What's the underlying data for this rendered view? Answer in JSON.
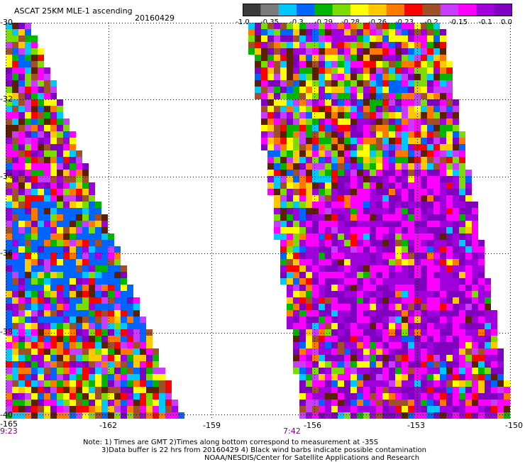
{
  "header": {
    "title": "ASCAT 25KM MLE-1 ascending",
    "date": "20160429"
  },
  "colorbar": {
    "labels": [
      "-1.0",
      "-0.35",
      "-0.3",
      "-0.29",
      "-0.28",
      "-0.26",
      "-0.23",
      "-0.2",
      "-0.15",
      "-0.1",
      "0.0"
    ],
    "colors": [
      "#3a3a3a",
      "#7a7a7a",
      "#00c8ff",
      "#0064ff",
      "#00b400",
      "#7adc00",
      "#ffff00",
      "#ffc800",
      "#ff7800",
      "#ff0000",
      "#a05028",
      "#c83cff",
      "#ff00ff",
      "#a000dc",
      "#8000c0"
    ]
  },
  "axes": {
    "lat_labels": [
      "-30",
      "-32",
      "-34",
      "-36",
      "-38",
      "-40"
    ],
    "lon_labels": [
      "-165",
      "-162",
      "-159",
      "-156",
      "-153",
      "-150"
    ],
    "time_labels": [
      "9:23",
      "7:42"
    ]
  },
  "footer": {
    "line1": "Note: 1) Times are GMT 2)Times along bottom correspond to measurement at -35S",
    "line2": "3)Data buffer is 22 hrs from 20160429 4) Black wind barbs indicate possible contamination",
    "line3": "NOAA/NESDIS/Center for Satellite Applications and Research"
  }
}
